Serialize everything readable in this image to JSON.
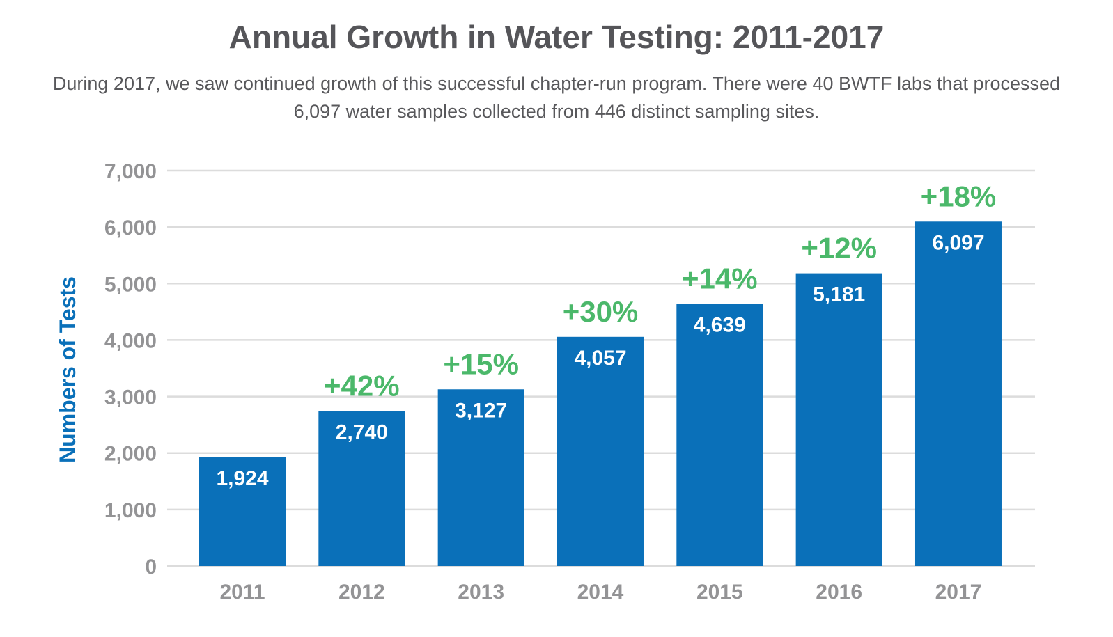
{
  "header": {
    "title": "Annual Growth in Water Testing: 2011-2017",
    "subtitle": "During 2017, we saw continued growth of this successful chapter-run program. There were 40 BWTF labs that processed 6,097 water samples collected from 446 distinct sampling sites."
  },
  "colors": {
    "bar": "#0a70b9",
    "growth": "#4bb86a",
    "axis_label": "#0a70b9",
    "tick_text": "#939395",
    "grid": "#dcdcdc",
    "title": "#555559"
  },
  "chart_data": {
    "type": "bar",
    "title": "Annual Growth in Water Testing: 2011-2017",
    "xlabel": "",
    "ylabel": "Numbers of Tests",
    "ylim": [
      0,
      7000
    ],
    "yticks": [
      "0",
      "1,000",
      "2,000",
      "3,000",
      "4,000",
      "5,000",
      "6,000",
      "7,000"
    ],
    "grid": true,
    "categories": [
      "2011",
      "2012",
      "2013",
      "2014",
      "2015",
      "2016",
      "2017"
    ],
    "values": [
      1924,
      2740,
      3127,
      4057,
      4639,
      5181,
      6097
    ],
    "value_labels": [
      "1,924",
      "2,740",
      "3,127",
      "4,057",
      "4,639",
      "5,181",
      "6,097"
    ],
    "growth_labels": [
      "",
      "+42%",
      "+15%",
      "+30%",
      "+14%",
      "+12%",
      "+18%"
    ]
  }
}
